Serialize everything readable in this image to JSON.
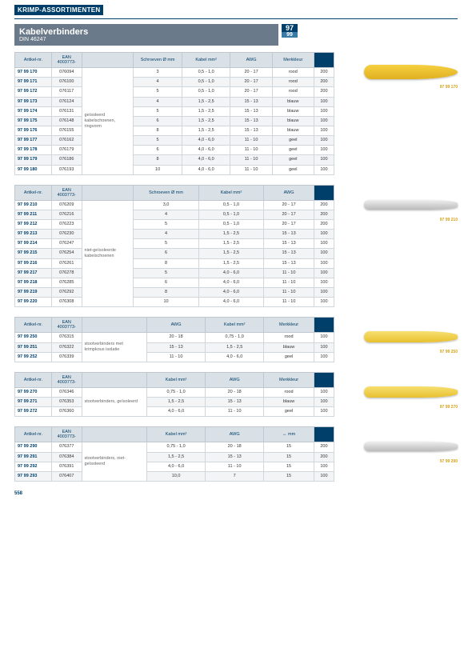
{
  "header": {
    "category": "KRIMP-ASSORTIMENTEN",
    "title": "Kabelverbinders",
    "subtitle": "DIN 46247",
    "numMain": "97",
    "numSub": "99"
  },
  "columns": {
    "artikel": "Artikel-nr.",
    "ean": "EAN\n4003773-",
    "schroeven": "Schroeven\nØ mm",
    "kabel": "Kabel\nmm²",
    "awg": "AWG",
    "merkkleur": "Merkkleur",
    "mm": "↔\nmm"
  },
  "imgLabels": {
    "t1": "97 99 170",
    "t2": "97 99 210",
    "t3": "97 99 250",
    "t4": "97 99 270",
    "t5": "97 99 290"
  },
  "table1": {
    "desc": "geïsoleerd kabelschoenen, ringvorm",
    "rows": [
      {
        "art": "97 99 170",
        "ean": "076094",
        "sch": "3",
        "kab": "0,5 - 1,0",
        "awg": "20 - 17",
        "kleur": "rood",
        "qty": "200"
      },
      {
        "art": "97 99 171",
        "ean": "076100",
        "sch": "4",
        "kab": "0,5 - 1,0",
        "awg": "20 - 17",
        "kleur": "rood",
        "qty": "200"
      },
      {
        "art": "97 99 172",
        "ean": "076117",
        "sch": "5",
        "kab": "0,5 - 1,0",
        "awg": "20 - 17",
        "kleur": "rood",
        "qty": "200"
      },
      {
        "art": "97 99 173",
        "ean": "076124",
        "sch": "4",
        "kab": "1,5 - 2,5",
        "awg": "15 - 13",
        "kleur": "blauw",
        "qty": "100"
      },
      {
        "art": "97 99 174",
        "ean": "076131",
        "sch": "5",
        "kab": "1,5 - 2,5",
        "awg": "15 - 13",
        "kleur": "blauw",
        "qty": "100"
      },
      {
        "art": "97 99 175",
        "ean": "076148",
        "sch": "6",
        "kab": "1,5 - 2,5",
        "awg": "15 - 13",
        "kleur": "blauw",
        "qty": "100"
      },
      {
        "art": "97 99 176",
        "ean": "076155",
        "sch": "8",
        "kab": "1,5 - 2,5",
        "awg": "15 - 13",
        "kleur": "blauw",
        "qty": "100"
      },
      {
        "art": "97 99 177",
        "ean": "076162",
        "sch": "5",
        "kab": "4,0 - 6,0",
        "awg": "11 - 10",
        "kleur": "geel",
        "qty": "100"
      },
      {
        "art": "97 99 178",
        "ean": "076179",
        "sch": "6",
        "kab": "4,0 - 6,0",
        "awg": "11 - 10",
        "kleur": "geel",
        "qty": "100"
      },
      {
        "art": "97 99 179",
        "ean": "076186",
        "sch": "8",
        "kab": "4,0 - 6,0",
        "awg": "11 - 10",
        "kleur": "geel",
        "qty": "100"
      },
      {
        "art": "97 99 180",
        "ean": "076193",
        "sch": "10",
        "kab": "4,0 - 6,0",
        "awg": "11 - 10",
        "kleur": "geel",
        "qty": "100"
      }
    ]
  },
  "table2": {
    "desc": "niet-geïsoleerde kabelschoenen",
    "rows": [
      {
        "art": "97 99 210",
        "ean": "076209",
        "sch": "3,0",
        "kab": "0,5 - 1,0",
        "awg": "20 - 17",
        "qty": "200"
      },
      {
        "art": "97 99 211",
        "ean": "076216",
        "sch": "4",
        "kab": "0,5 - 1,0",
        "awg": "20 - 17",
        "qty": "200"
      },
      {
        "art": "97 99 212",
        "ean": "076223",
        "sch": "5",
        "kab": "0,5 - 1,0",
        "awg": "20 - 17",
        "qty": "200"
      },
      {
        "art": "97 99 213",
        "ean": "076230",
        "sch": "4",
        "kab": "1,5 - 2,5",
        "awg": "15 - 13",
        "qty": "100"
      },
      {
        "art": "97 99 214",
        "ean": "076247",
        "sch": "5",
        "kab": "1,5 - 2,5",
        "awg": "15 - 13",
        "qty": "100"
      },
      {
        "art": "97 99 215",
        "ean": "076254",
        "sch": "6",
        "kab": "1,5 - 2,5",
        "awg": "15 - 13",
        "qty": "100"
      },
      {
        "art": "97 99 216",
        "ean": "076261",
        "sch": "8",
        "kab": "1,5 - 2,5",
        "awg": "15 - 13",
        "qty": "100"
      },
      {
        "art": "97 99 217",
        "ean": "076278",
        "sch": "5",
        "kab": "4,0 - 6,0",
        "awg": "11 - 10",
        "qty": "100"
      },
      {
        "art": "97 99 218",
        "ean": "076285",
        "sch": "6",
        "kab": "4,0 - 6,0",
        "awg": "11 - 10",
        "qty": "100"
      },
      {
        "art": "97 99 219",
        "ean": "076292",
        "sch": "8",
        "kab": "4,0 - 6,0",
        "awg": "11 - 10",
        "qty": "100"
      },
      {
        "art": "97 99 220",
        "ean": "076308",
        "sch": "10",
        "kab": "4,0 - 6,0",
        "awg": "11 - 10",
        "qty": "100"
      }
    ]
  },
  "table3": {
    "desc": "stootverbinders met krimpkous isolatie",
    "rows": [
      {
        "art": "97 99 250",
        "ean": "076315",
        "awg": "20 - 18",
        "kab": "0,75 - 1,0",
        "kleur": "rood",
        "qty": "100"
      },
      {
        "art": "97 99 251",
        "ean": "076322",
        "awg": "15 - 13",
        "kab": "1,5 - 2,5",
        "kleur": "blauw",
        "qty": "100"
      },
      {
        "art": "97 99 252",
        "ean": "076339",
        "awg": "11 - 10",
        "kab": "4,0 - 6,0",
        "kleur": "geel",
        "qty": "100"
      }
    ]
  },
  "table4": {
    "desc": "stootverbinders, geïsoleerd",
    "rows": [
      {
        "art": "97 99 270",
        "ean": "076346",
        "kab": "0,75 - 1,0",
        "awg": "20 - 18",
        "kleur": "rood",
        "qty": "100"
      },
      {
        "art": "97 99 271",
        "ean": "076353",
        "kab": "1,5 - 2,5",
        "awg": "15 - 13",
        "kleur": "blauw",
        "qty": "100"
      },
      {
        "art": "97 99 272",
        "ean": "076360",
        "kab": "4,0 - 6,0",
        "awg": "11 - 10",
        "kleur": "geel",
        "qty": "100"
      }
    ]
  },
  "table5": {
    "desc": "stootverbinders, niet-geïsoleerd",
    "rows": [
      {
        "art": "97 99 290",
        "ean": "076377",
        "kab": "0,75 - 1,0",
        "awg": "20 - 18",
        "mm": "15",
        "qty": "200"
      },
      {
        "art": "97 99 291",
        "ean": "076384",
        "kab": "1,5 - 2,5",
        "awg": "15 - 13",
        "mm": "15",
        "qty": "200"
      },
      {
        "art": "97 99 292",
        "ean": "076391",
        "kab": "4,0 - 6,0",
        "awg": "11 - 10",
        "mm": "15",
        "qty": "100"
      },
      {
        "art": "97 99 293",
        "ean": "076407",
        "kab": "10,0",
        "awg": "7",
        "mm": "15",
        "qty": "100"
      }
    ]
  },
  "pagenum": "558"
}
